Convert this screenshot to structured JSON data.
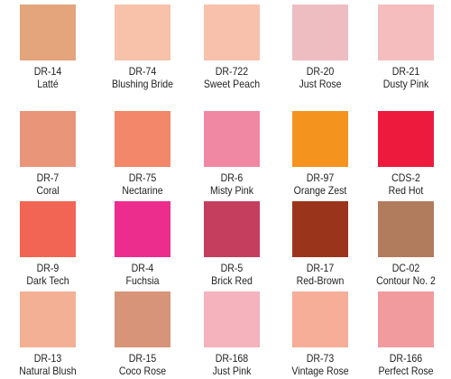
{
  "swatches": [
    {
      "code": "DR-14",
      "name": "Latté",
      "color": "#E4A47C"
    },
    {
      "code": "DR-74",
      "name": "Blushing Bride",
      "color": "#F7C1AA"
    },
    {
      "code": "DR-722",
      "name": "Sweet Peach",
      "color": "#F8C1AC"
    },
    {
      "code": "DR-20",
      "name": "Just Rose",
      "color": "#EEBDC2"
    },
    {
      "code": "DR-21",
      "name": "Dusty Pink",
      "color": "#F5BDBE"
    },
    {
      "code": "DR-7",
      "name": "Coral",
      "color": "#E8957A"
    },
    {
      "code": "DR-75",
      "name": "Nectarine",
      "color": "#F28769"
    },
    {
      "code": "DR-6",
      "name": "Misty Pink",
      "color": "#F088A4"
    },
    {
      "code": "DR-97",
      "name": "Orange Zest",
      "color": "#F5931F"
    },
    {
      "code": "CDS-2",
      "name": "Red Hot",
      "color": "#EE1A3E"
    },
    {
      "code": "DR-9",
      "name": "Dark Tech",
      "color": "#F26453"
    },
    {
      "code": "DR-4",
      "name": "Fuchsia",
      "color": "#EC2D8E"
    },
    {
      "code": "DR-5",
      "name": "Brick Red",
      "color": "#C63E5E"
    },
    {
      "code": "DR-17",
      "name": "Red-Brown",
      "color": "#9A351B"
    },
    {
      "code": "DC-02",
      "name": "Contour No. 2",
      "color": "#B17B5E"
    },
    {
      "code": "DR-13",
      "name": "Natural Blush",
      "color": "#F4B095"
    },
    {
      "code": "DR-15",
      "name": "Coco Rose",
      "color": "#D89478"
    },
    {
      "code": "DR-168",
      "name": "Just Pink",
      "color": "#F5B3BD"
    },
    {
      "code": "DR-73",
      "name": "Vintage Rose",
      "color": "#F6AE98"
    },
    {
      "code": "DR-166",
      "name": "Perfect Rose",
      "color": "#F29B9F"
    }
  ]
}
